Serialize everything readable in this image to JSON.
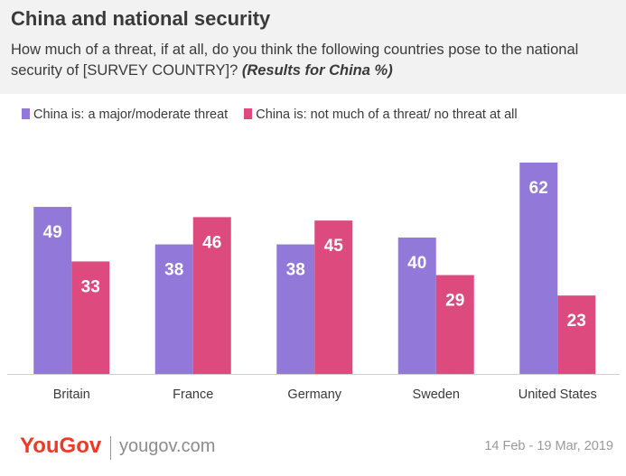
{
  "title": "China and national security",
  "subtitle_main": "How much of a threat, if at all, do you think the following countries pose to the national security of [SURVEY COUNTRY]?",
  "subtitle_emphasis": "(Results for China %)",
  "footer": {
    "logo": "YouGov",
    "url": "yougov.com",
    "date": "14 Feb - 19 Mar, 2019"
  },
  "colors": {
    "threat": "#9278d8",
    "no_threat": "#dc4a7e",
    "text": "#3a3a3a",
    "axis": "#cfcfcf"
  },
  "chart_data": {
    "type": "bar",
    "categories": [
      "Britain",
      "France",
      "Germany",
      "Sweden",
      "United States"
    ],
    "series": [
      {
        "name": "China is: a major/moderate threat",
        "values": [
          49,
          38,
          38,
          40,
          62
        ]
      },
      {
        "name": "China is: not much of a threat/ no threat at all",
        "values": [
          33,
          46,
          45,
          29,
          23
        ]
      }
    ],
    "ylim": [
      0,
      62
    ],
    "grid": false,
    "legend_position": "top-left",
    "data_labels": true
  }
}
